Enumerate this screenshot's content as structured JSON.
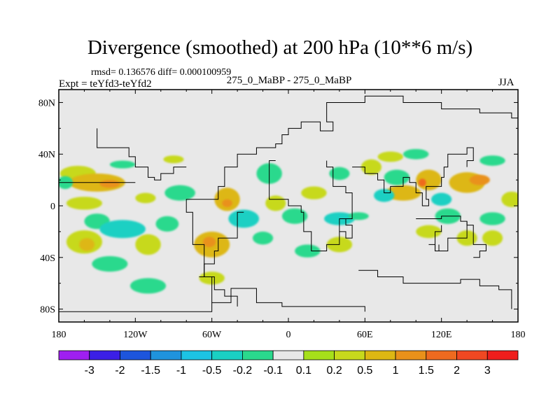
{
  "chart_data": {
    "type": "heatmap",
    "title": "Divergence (smoothed) at 200 hPa (10**6 m/s)",
    "stats": "rmsd= 0.136576 diff= 0.000100959",
    "expt": "Expt = teYfd3-teYfd2",
    "experiments": "275_0_MaBP - 275_0_MaBP",
    "season": "JJA",
    "xlabel": "",
    "ylabel": "",
    "xlim": [
      -180,
      180
    ],
    "ylim": [
      -90,
      90
    ],
    "x_ticks": [
      {
        "value": -180,
        "label": "180"
      },
      {
        "value": -120,
        "label": "120W"
      },
      {
        "value": -60,
        "label": "60W"
      },
      {
        "value": 0,
        "label": "0"
      },
      {
        "value": 60,
        "label": "60E"
      },
      {
        "value": 120,
        "label": "120E"
      },
      {
        "value": 180,
        "label": "180"
      }
    ],
    "y_ticks": [
      {
        "value": 80,
        "label": "80N"
      },
      {
        "value": 40,
        "label": "40N"
      },
      {
        "value": 0,
        "label": "0"
      },
      {
        "value": -40,
        "label": "40S"
      },
      {
        "value": -80,
        "label": "80S"
      }
    ],
    "colorbar": {
      "colors": [
        "#9f1ff0",
        "#3b1fe6",
        "#1d55dc",
        "#1f93dd",
        "#1cc3e4",
        "#1ad0c3",
        "#2ad98d",
        "#e8e8e8",
        "#a6e01a",
        "#c7d91c",
        "#ddb713",
        "#e9911a",
        "#ee6a1f",
        "#f04822",
        "#ef1e1c"
      ],
      "labels": [
        "-3",
        "-2",
        "-1.5",
        "-1",
        "-0.5",
        "-0.2",
        "-0.1",
        "0.1",
        "0.2",
        "0.5",
        "1",
        "1.5",
        "2",
        "3"
      ]
    },
    "background_color": "#e8e8e8",
    "field_blobs": [
      {
        "lon": -165,
        "lat": 25,
        "rx": 14,
        "ry": 6,
        "level": 0.2
      },
      {
        "lon": -150,
        "lat": 18,
        "rx": 22,
        "ry": 7,
        "level": 0.5
      },
      {
        "lon": -140,
        "lat": 17,
        "rx": 8,
        "ry": 3,
        "level": 1
      },
      {
        "lon": -175,
        "lat": 18,
        "rx": 6,
        "ry": 5,
        "level": -0.2
      },
      {
        "lon": -160,
        "lat": 2,
        "rx": 14,
        "ry": 5,
        "level": 0.2
      },
      {
        "lon": -125,
        "lat": 2,
        "rx": 18,
        "ry": 6,
        "level": -0.1
      },
      {
        "lon": -112,
        "lat": 6,
        "rx": 8,
        "ry": 4,
        "level": 0.2
      },
      {
        "lon": -85,
        "lat": 10,
        "rx": 12,
        "ry": 6,
        "level": -0.2
      },
      {
        "lon": -150,
        "lat": -12,
        "rx": 10,
        "ry": 6,
        "level": -0.2
      },
      {
        "lon": -130,
        "lat": -18,
        "rx": 18,
        "ry": 7,
        "level": -0.5
      },
      {
        "lon": -95,
        "lat": -14,
        "rx": 9,
        "ry": 6,
        "level": -0.2
      },
      {
        "lon": -160,
        "lat": -28,
        "rx": 14,
        "ry": 9,
        "level": 0.2
      },
      {
        "lon": -158,
        "lat": -30,
        "rx": 6,
        "ry": 5,
        "level": 0.5
      },
      {
        "lon": -110,
        "lat": -30,
        "rx": 10,
        "ry": 8,
        "level": 0.2
      },
      {
        "lon": -60,
        "lat": -30,
        "rx": 14,
        "ry": 10,
        "level": 0.5
      },
      {
        "lon": -62,
        "lat": -28,
        "rx": 5,
        "ry": 4,
        "level": 1
      },
      {
        "lon": -140,
        "lat": -45,
        "rx": 14,
        "ry": 6,
        "level": -0.2
      },
      {
        "lon": -110,
        "lat": -62,
        "rx": 14,
        "ry": 6,
        "level": -0.2
      },
      {
        "lon": -60,
        "lat": -56,
        "rx": 10,
        "ry": 5,
        "level": 0.2
      },
      {
        "lon": -130,
        "lat": 32,
        "rx": 10,
        "ry": 3,
        "level": -0.2
      },
      {
        "lon": -90,
        "lat": 36,
        "rx": 8,
        "ry": 3,
        "level": 0.2
      },
      {
        "lon": -50,
        "lat": 38,
        "rx": 8,
        "ry": 4,
        "level": -0.1
      },
      {
        "lon": -40,
        "lat": 22,
        "rx": 8,
        "ry": 10,
        "level": -0.1
      },
      {
        "lon": -15,
        "lat": 25,
        "rx": 10,
        "ry": 8,
        "level": -0.2
      },
      {
        "lon": -48,
        "lat": 5,
        "rx": 10,
        "ry": 9,
        "level": 0.5
      },
      {
        "lon": -48,
        "lat": 2,
        "rx": 4,
        "ry": 3,
        "level": 1
      },
      {
        "lon": -35,
        "lat": -10,
        "rx": 12,
        "ry": 7,
        "level": -0.5
      },
      {
        "lon": -10,
        "lat": 2,
        "rx": 8,
        "ry": 6,
        "level": 0.2
      },
      {
        "lon": 5,
        "lat": -8,
        "rx": 10,
        "ry": 6,
        "level": -0.2
      },
      {
        "lon": -20,
        "lat": -25,
        "rx": 8,
        "ry": 5,
        "level": -0.2
      },
      {
        "lon": 20,
        "lat": 10,
        "rx": 10,
        "ry": 5,
        "level": 0.2
      },
      {
        "lon": 40,
        "lat": -10,
        "rx": 12,
        "ry": 5,
        "level": -0.5
      },
      {
        "lon": 55,
        "lat": -8,
        "rx": 8,
        "ry": 3,
        "level": -0.2
      },
      {
        "lon": 40,
        "lat": 25,
        "rx": 8,
        "ry": 5,
        "level": -0.2
      },
      {
        "lon": 65,
        "lat": 30,
        "rx": 8,
        "ry": 6,
        "level": 0.2
      },
      {
        "lon": 80,
        "lat": 38,
        "rx": 10,
        "ry": 4,
        "level": 0.2
      },
      {
        "lon": 100,
        "lat": 40,
        "rx": 10,
        "ry": 4,
        "level": -0.2
      },
      {
        "lon": 110,
        "lat": 20,
        "rx": 10,
        "ry": 8,
        "level": 0.5
      },
      {
        "lon": 105,
        "lat": 18,
        "rx": 3,
        "ry": 3,
        "level": 1.5
      },
      {
        "lon": 90,
        "lat": 10,
        "rx": 14,
        "ry": 6,
        "level": 0.5
      },
      {
        "lon": 85,
        "lat": 22,
        "rx": 10,
        "ry": 6,
        "level": -0.2
      },
      {
        "lon": 75,
        "lat": 8,
        "rx": 8,
        "ry": 5,
        "level": -0.5
      },
      {
        "lon": 125,
        "lat": -8,
        "rx": 10,
        "ry": 6,
        "level": -0.2
      },
      {
        "lon": 140,
        "lat": 18,
        "rx": 14,
        "ry": 8,
        "level": 0.5
      },
      {
        "lon": 150,
        "lat": 20,
        "rx": 8,
        "ry": 4,
        "level": 1
      },
      {
        "lon": 160,
        "lat": -10,
        "rx": 10,
        "ry": 5,
        "level": -0.2
      },
      {
        "lon": 160,
        "lat": -25,
        "rx": 8,
        "ry": 6,
        "level": 0.2
      },
      {
        "lon": 140,
        "lat": -25,
        "rx": 8,
        "ry": 6,
        "level": 0.2
      },
      {
        "lon": 110,
        "lat": -20,
        "rx": 10,
        "ry": 5,
        "level": 0.2
      },
      {
        "lon": 40,
        "lat": -30,
        "rx": 10,
        "ry": 6,
        "level": 0.2
      },
      {
        "lon": 15,
        "lat": -35,
        "rx": 10,
        "ry": 5,
        "level": -0.2
      },
      {
        "lon": 160,
        "lat": 35,
        "rx": 10,
        "ry": 4,
        "level": -0.2
      },
      {
        "lon": 120,
        "lat": 5,
        "rx": 8,
        "ry": 5,
        "level": -0.5
      },
      {
        "lon": 175,
        "lat": 5,
        "rx": 8,
        "ry": 6,
        "level": 0.2
      }
    ],
    "coastlines": [
      [
        [
          -180,
          -82
        ],
        [
          -60,
          -82
        ],
        [
          -60,
          -75
        ],
        [
          -45,
          -75
        ],
        [
          -45,
          -64
        ],
        [
          -25,
          -64
        ],
        [
          -25,
          -75
        ],
        [
          -5,
          -75
        ],
        [
          -5,
          -78
        ],
        [
          60,
          -78
        ],
        [
          60,
          -82
        ]
      ],
      [
        [
          -60,
          -75
        ],
        [
          -60,
          -55
        ],
        [
          -66,
          -55
        ],
        [
          -66,
          -30
        ],
        [
          -75,
          -30
        ],
        [
          -75,
          -5
        ],
        [
          -80,
          -5
        ],
        [
          -80,
          5
        ],
        [
          -60,
          5
        ],
        [
          -55,
          15
        ],
        [
          -50,
          30
        ],
        [
          -40,
          40
        ],
        [
          -25,
          45
        ],
        [
          -10,
          48
        ],
        [
          -5,
          55
        ],
        [
          0,
          60
        ],
        [
          10,
          65
        ],
        [
          25,
          58
        ],
        [
          35,
          65
        ],
        [
          30,
          80
        ],
        [
          60,
          85
        ],
        [
          90,
          80
        ],
        [
          120,
          75
        ],
        [
          150,
          72
        ],
        [
          175,
          68
        ],
        [
          180,
          66
        ]
      ],
      [
        [
          -35,
          -5
        ],
        [
          -40,
          -25
        ],
        [
          -55,
          -35
        ],
        [
          -58,
          -45
        ],
        [
          -66,
          -55
        ]
      ],
      [
        [
          -10,
          35
        ],
        [
          -15,
          15
        ],
        [
          -15,
          5
        ],
        [
          0,
          0
        ],
        [
          10,
          -5
        ],
        [
          12,
          -20
        ],
        [
          18,
          -35
        ],
        [
          30,
          -30
        ],
        [
          40,
          -20
        ],
        [
          40,
          -10
        ],
        [
          50,
          0
        ],
        [
          50,
          10
        ],
        [
          45,
          15
        ],
        [
          35,
          30
        ],
        [
          30,
          35
        ]
      ],
      [
        [
          40,
          -20
        ],
        [
          45,
          -25
        ],
        [
          50,
          -15
        ],
        [
          45,
          -10
        ]
      ],
      [
        [
          50,
          30
        ],
        [
          60,
          25
        ],
        [
          70,
          20
        ],
        [
          75,
          10
        ],
        [
          80,
          15
        ],
        [
          90,
          22
        ],
        [
          95,
          18
        ],
        [
          100,
          10
        ],
        [
          105,
          0
        ],
        [
          110,
          5
        ],
        [
          108,
          15
        ],
        [
          120,
          22
        ],
        [
          122,
          30
        ],
        [
          125,
          40
        ],
        [
          140,
          45
        ],
        [
          145,
          35
        ],
        [
          140,
          30
        ]
      ],
      [
        [
          100,
          -10
        ],
        [
          120,
          -8
        ],
        [
          135,
          -12
        ],
        [
          140,
          -25
        ],
        [
          125,
          -35
        ],
        [
          115,
          -32
        ],
        [
          115,
          -20
        ],
        [
          120,
          -15
        ]
      ],
      [
        [
          145,
          -40
        ],
        [
          150,
          -35
        ],
        [
          155,
          -30
        ],
        [
          145,
          -15
        ],
        [
          140,
          -12
        ]
      ],
      [
        [
          110,
          -30
        ],
        [
          115,
          -35
        ],
        [
          118,
          -30
        ]
      ],
      [
        [
          55,
          -50
        ],
        [
          70,
          -55
        ],
        [
          90,
          -60
        ],
        [
          120,
          -60
        ],
        [
          135,
          -57
        ],
        [
          150,
          -62
        ],
        [
          165,
          -65
        ],
        [
          175,
          -70
        ],
        [
          175,
          -80
        ]
      ],
      [
        [
          -70,
          -55
        ],
        [
          -58,
          -65
        ],
        [
          -50,
          -70
        ],
        [
          -40,
          -78
        ]
      ],
      [
        [
          -180,
          18
        ],
        [
          -120,
          18
        ]
      ],
      [
        [
          -80,
          30
        ],
        [
          -90,
          25
        ],
        [
          -100,
          20
        ],
        [
          -105,
          22
        ],
        [
          -110,
          30
        ],
        [
          -120,
          38
        ],
        [
          -125,
          45
        ],
        [
          -150,
          60
        ]
      ]
    ]
  }
}
